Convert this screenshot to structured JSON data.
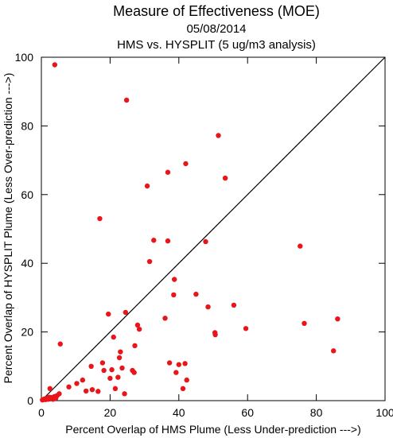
{
  "chart_data": {
    "type": "scatter",
    "title": "Measure of Effectiveness (MOE)",
    "subtitle": "05/08/2014",
    "subtitle2": "HMS vs. HYSPLIT  (5 ug/m3 analysis)",
    "xlabel": "Percent Overlap of HMS Plume (Less Under-prediction --->)",
    "ylabel": "Percent Overlap of HYSPLIT Plume (Less Over-prediction --->)",
    "xlim": [
      0,
      100
    ],
    "ylim": [
      0,
      100
    ],
    "x_ticks": [
      "0",
      "20",
      "40",
      "60",
      "80",
      "100"
    ],
    "y_ticks": [
      "0",
      "20",
      "40",
      "60",
      "80",
      "100"
    ],
    "grid": false,
    "reference_line": "y = x",
    "point_color": "#e8151b",
    "series": [
      {
        "points": [
          [
            0.3,
            0.2
          ],
          [
            0.6,
            0.3
          ],
          [
            0.9,
            0.5
          ],
          [
            1.2,
            0.3
          ],
          [
            1.5,
            0.6
          ],
          [
            1.8,
            0.8
          ],
          [
            2.0,
            0.4
          ],
          [
            2.3,
            1.0
          ],
          [
            2.6,
            0.5
          ],
          [
            3.0,
            0.9
          ],
          [
            3.4,
            0.4
          ],
          [
            3.8,
            1.2
          ],
          [
            4.2,
            0.7
          ],
          [
            4.6,
            1.5
          ],
          [
            2.5,
            3.5
          ],
          [
            4.1,
            1.0
          ],
          [
            5.2,
            2.0
          ],
          [
            5.5,
            16.5
          ],
          [
            3.9,
            97.8
          ],
          [
            8.0,
            4.0
          ],
          [
            10.3,
            5.0
          ],
          [
            12.0,
            6.0
          ],
          [
            13.0,
            2.8
          ],
          [
            14.5,
            10.0
          ],
          [
            14.8,
            3.2
          ],
          [
            16.5,
            2.7
          ],
          [
            17.0,
            53.0
          ],
          [
            17.8,
            11.0
          ],
          [
            18.2,
            8.8
          ],
          [
            19.5,
            25.2
          ],
          [
            20.0,
            6.5
          ],
          [
            20.5,
            9.0
          ],
          [
            21.0,
            18.5
          ],
          [
            21.5,
            3.5
          ],
          [
            22.3,
            6.8
          ],
          [
            22.7,
            12.5
          ],
          [
            23.0,
            14.2
          ],
          [
            23.5,
            9.5
          ],
          [
            24.2,
            2.0
          ],
          [
            24.5,
            25.7
          ],
          [
            24.8,
            87.5
          ],
          [
            26.5,
            8.8
          ],
          [
            27.0,
            8.2
          ],
          [
            27.2,
            16.0
          ],
          [
            28.0,
            22.0
          ],
          [
            28.5,
            20.8
          ],
          [
            30.8,
            62.5
          ],
          [
            31.5,
            40.5
          ],
          [
            32.7,
            46.7
          ],
          [
            36.0,
            24.0
          ],
          [
            36.8,
            66.5
          ],
          [
            36.8,
            46.5
          ],
          [
            37.3,
            11.0
          ],
          [
            38.5,
            30.8
          ],
          [
            38.7,
            35.3
          ],
          [
            39.2,
            8.2
          ],
          [
            40.0,
            10.5
          ],
          [
            41.2,
            3.5
          ],
          [
            41.8,
            10.8
          ],
          [
            42.0,
            69.0
          ],
          [
            42.3,
            6.0
          ],
          [
            45.0,
            31.0
          ],
          [
            47.8,
            46.3
          ],
          [
            48.5,
            27.3
          ],
          [
            50.5,
            19.8
          ],
          [
            50.6,
            19.2
          ],
          [
            51.5,
            77.2
          ],
          [
            53.5,
            64.8
          ],
          [
            56.0,
            27.8
          ],
          [
            59.5,
            21.0
          ],
          [
            75.3,
            45.0
          ],
          [
            76.5,
            22.5
          ],
          [
            85.0,
            14.5
          ],
          [
            86.2,
            23.8
          ]
        ]
      }
    ]
  }
}
